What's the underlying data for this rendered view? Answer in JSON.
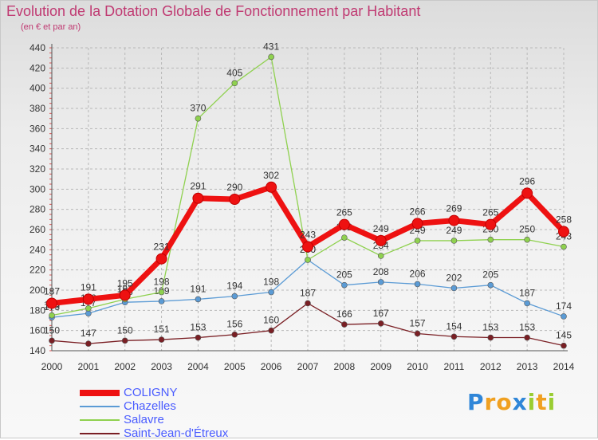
{
  "title": "Evolution de la Dotation Globale de Fonctionnement par Habitant",
  "subtitle": "(en € et par an)",
  "logo": {
    "text": "Proxiti",
    "letters": [
      {
        "ch": "P",
        "color": "#2f86d8"
      },
      {
        "ch": "r",
        "color": "#f0a020"
      },
      {
        "ch": "o",
        "color": "#f0a020"
      },
      {
        "ch": "x",
        "color": "#2f86d8"
      },
      {
        "ch": "i",
        "color": "#9acd32"
      },
      {
        "ch": "t",
        "color": "#f0a020"
      },
      {
        "ch": "i",
        "color": "#9acd32"
      }
    ]
  },
  "chart_data": {
    "type": "line",
    "title": "Evolution de la Dotation Globale de Fonctionnement par Habitant",
    "subtitle": "(en € et par an)",
    "x": [
      2000,
      2001,
      2002,
      2003,
      2004,
      2005,
      2006,
      2007,
      2008,
      2009,
      2010,
      2011,
      2012,
      2013,
      2014
    ],
    "ylim": [
      140,
      440
    ],
    "yticks": [
      140,
      160,
      180,
      200,
      220,
      240,
      260,
      280,
      300,
      320,
      340,
      360,
      380,
      400,
      420,
      440
    ],
    "grid": true,
    "legend_position": "bottom-left",
    "series": [
      {
        "name": "Saint-Jean-d'Étreux",
        "color": "#7a1f24",
        "values": [
          150,
          147,
          150,
          151,
          153,
          156,
          160,
          187,
          166,
          167,
          157,
          154,
          153,
          153,
          145
        ],
        "labels": [
          "150",
          "147",
          "150",
          "151",
          "153",
          "156",
          "160",
          "187",
          "166",
          "167",
          "157",
          "154",
          "153",
          "153",
          "145"
        ]
      },
      {
        "name": "Chazelles",
        "color": "#5b9bd5",
        "values": [
          173,
          177,
          188,
          189,
          191,
          194,
          198,
          230,
          205,
          208,
          206,
          202,
          205,
          187,
          174
        ],
        "labels": [
          "173",
          "177",
          "188",
          "189",
          "191",
          "194",
          "198",
          "230",
          "205",
          "208",
          "206",
          "202",
          "205",
          "187",
          "174"
        ]
      },
      {
        "name": "Salavre",
        "color": "#8fd14f",
        "values": [
          175,
          182,
          191,
          198,
          370,
          405,
          431,
          230,
          252,
          234,
          249,
          249,
          250,
          250,
          243
        ],
        "labels": [
          "175",
          "182",
          "191",
          "198",
          "370",
          "405",
          "431",
          "230",
          "252",
          "234",
          "249",
          "249",
          "250",
          "250",
          "243"
        ]
      },
      {
        "name": "COLIGNY",
        "color": "#ee1111",
        "values": [
          187,
          191,
          195,
          231,
          291,
          290,
          302,
          243,
          265,
          249,
          266,
          269,
          265,
          296,
          258
        ],
        "labels": [
          "187",
          "191",
          "195",
          "231",
          "291",
          "290",
          "302",
          "243",
          "265",
          "249",
          "266",
          "269",
          "265",
          "296",
          "258"
        ]
      }
    ],
    "legend": [
      {
        "name": "COLIGNY",
        "color": "#ee1111",
        "weight": "thick"
      },
      {
        "name": "Chazelles",
        "color": "#5b9bd5",
        "weight": "thin"
      },
      {
        "name": "Salavre",
        "color": "#8fd14f",
        "weight": "thin"
      },
      {
        "name": "Saint-Jean-d'Étreux",
        "color": "#7a1f24",
        "weight": "thin"
      }
    ]
  }
}
